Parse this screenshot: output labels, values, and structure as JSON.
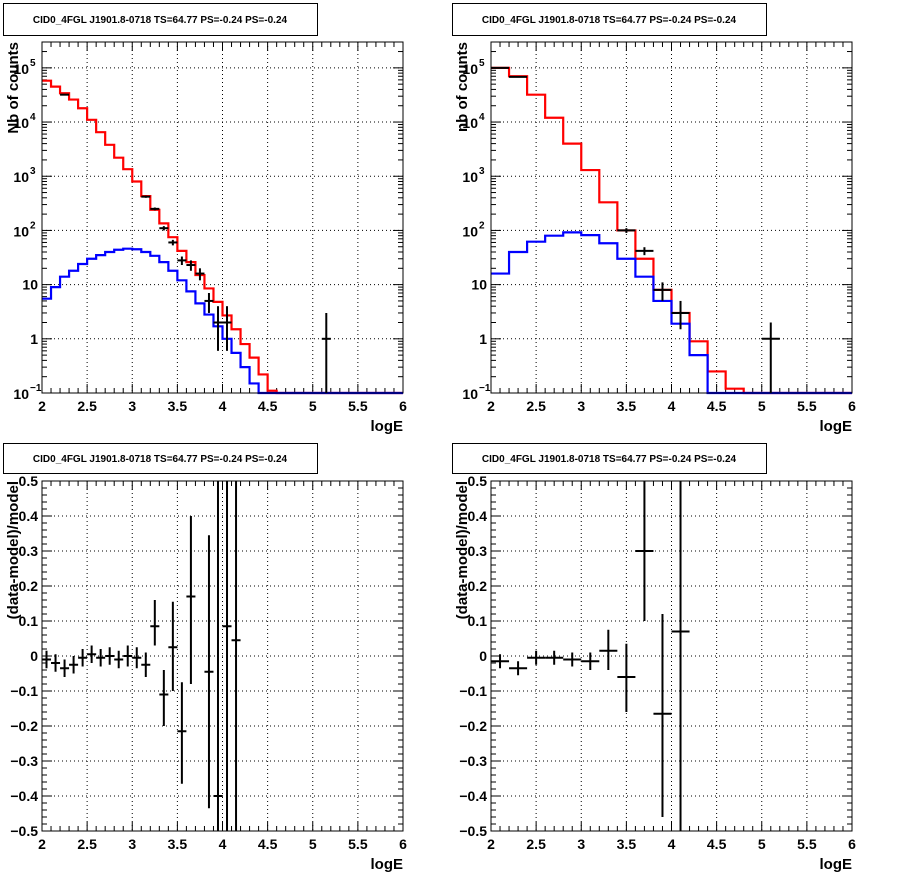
{
  "colors": {
    "data": "#000000",
    "total_model": "#ff0000",
    "source_model": "#0000ff",
    "grid": "#000000"
  },
  "chart_data": [
    {
      "type": "step",
      "title": "CID0_4FGL J1901.8-0718 TS=64.77 PS=-0.24 PS=-0.24",
      "xlabel": "logE",
      "ylabel": "Nb of counts",
      "log_y": true,
      "grid": true,
      "xlim": [
        2,
        6
      ],
      "ylim": [
        0.1,
        300000
      ],
      "x_ticks": [
        "2",
        "2.5",
        "3",
        "3.5",
        "4",
        "4.5",
        "5",
        "5.5",
        "6"
      ],
      "y_ticks": [
        {
          "v": 0.1,
          "label": "10",
          "sup": "−1"
        },
        {
          "v": 1,
          "label": "1",
          "sup": ""
        },
        {
          "v": 10,
          "label": "10",
          "sup": ""
        },
        {
          "v": 100,
          "label": "10",
          "sup": "2"
        },
        {
          "v": 1000,
          "label": "10",
          "sup": "3"
        },
        {
          "v": 10000,
          "label": "10",
          "sup": "4"
        },
        {
          "v": 100000,
          "label": "10",
          "sup": "5"
        }
      ],
      "bin_edges": [
        2,
        2.1,
        2.2,
        2.3,
        2.4,
        2.5,
        2.6,
        2.7,
        2.8,
        2.9,
        3,
        3.1,
        3.2,
        3.3,
        3.4,
        3.5,
        3.6,
        3.7,
        3.8,
        3.9,
        4,
        4.1,
        4.2,
        4.3,
        4.4,
        4.5,
        4.6,
        4.7,
        4.8,
        4.9,
        5,
        5.1,
        5.2,
        5.3,
        5.4,
        5.5,
        5.6,
        5.7,
        5.8,
        5.9,
        6
      ],
      "series": [
        {
          "role": "total_model",
          "values": [
            58000,
            45000,
            34000,
            26000,
            18000,
            11000,
            6500,
            3800,
            2200,
            1350,
            800,
            430,
            240,
            135,
            75,
            42,
            26,
            15,
            8.5,
            4.8,
            2.7,
            1.5,
            0.8,
            0.45,
            0.22,
            0.11,
            0.1,
            0.1,
            0.1,
            0.1,
            0.1,
            0.1,
            0.1,
            0.1,
            0.1,
            0.1,
            0.1,
            0.1,
            0.1,
            0.1
          ]
        },
        {
          "role": "source_model",
          "values": [
            5.5,
            9,
            14,
            18,
            24,
            30,
            35,
            40,
            44,
            46,
            45,
            40,
            34,
            26,
            18,
            12,
            7.5,
            4.5,
            2.8,
            1.7,
            1,
            0.55,
            0.3,
            0.15,
            0.1,
            0.1,
            0.1,
            0.1,
            0.1,
            0.1,
            0.1,
            0.1,
            0.1,
            0.1,
            0.1,
            0.1,
            0.1,
            0.1,
            0.1,
            0.1
          ]
        }
      ],
      "points": [
        {
          "x": 2.25,
          "y": 32000,
          "lo": 31000,
          "hi": 33000
        },
        {
          "x": 3.15,
          "y": 420,
          "lo": 400,
          "hi": 440
        },
        {
          "x": 3.25,
          "y": 250,
          "lo": 235,
          "hi": 265
        },
        {
          "x": 3.35,
          "y": 110,
          "lo": 100,
          "hi": 120
        },
        {
          "x": 3.45,
          "y": 60,
          "lo": 53,
          "hi": 67
        },
        {
          "x": 3.55,
          "y": 28,
          "lo": 23,
          "hi": 33
        },
        {
          "x": 3.65,
          "y": 23,
          "lo": 18,
          "hi": 28
        },
        {
          "x": 3.75,
          "y": 16,
          "lo": 12,
          "hi": 20
        },
        {
          "x": 3.85,
          "y": 5,
          "lo": 3,
          "hi": 7
        },
        {
          "x": 3.95,
          "y": 2,
          "lo": 0.6,
          "hi": 4
        },
        {
          "x": 4.05,
          "y": 2,
          "lo": 0.6,
          "hi": 4
        },
        {
          "x": 5.15,
          "y": 1,
          "lo": 0.1,
          "hi": 3
        }
      ]
    },
    {
      "type": "step",
      "title": "CID0_4FGL J1901.8-0718 TS=64.77 PS=-0.24 PS=-0.24",
      "xlabel": "logE",
      "ylabel": "nb of counts",
      "log_y": true,
      "grid": true,
      "xlim": [
        2,
        6
      ],
      "ylim": [
        0.1,
        300000
      ],
      "x_ticks": [
        "2",
        "2.5",
        "3",
        "3.5",
        "4",
        "4.5",
        "5",
        "5.5",
        "6"
      ],
      "y_ticks": [
        {
          "v": 0.1,
          "label": "10",
          "sup": "−1"
        },
        {
          "v": 1,
          "label": "1",
          "sup": ""
        },
        {
          "v": 10,
          "label": "10",
          "sup": ""
        },
        {
          "v": 100,
          "label": "10",
          "sup": "2"
        },
        {
          "v": 1000,
          "label": "10",
          "sup": "3"
        },
        {
          "v": 10000,
          "label": "10",
          "sup": "4"
        },
        {
          "v": 100000,
          "label": "10",
          "sup": "5"
        }
      ],
      "bin_edges": [
        2,
        2.2,
        2.4,
        2.6,
        2.8,
        3,
        3.2,
        3.4,
        3.6,
        3.8,
        4,
        4.2,
        4.4,
        4.6,
        4.8,
        5,
        5.2,
        5.4,
        5.6,
        5.8,
        6
      ],
      "series": [
        {
          "role": "total_model",
          "values": [
            100000,
            70000,
            32000,
            12000,
            4000,
            1300,
            330,
            100,
            30,
            8,
            3,
            0.9,
            0.25,
            0.12,
            0.1,
            0.1,
            0.1,
            0.1,
            0.1,
            0.1
          ]
        },
        {
          "role": "source_model",
          "values": [
            16,
            40,
            62,
            80,
            92,
            82,
            58,
            30,
            14,
            5,
            1.9,
            0.5,
            0.1,
            0.1,
            0.1,
            0.1,
            0.1,
            0.1,
            0.1,
            0.1
          ]
        }
      ],
      "points": [
        {
          "x": 2.1,
          "y": 100000,
          "lo": 99000,
          "hi": 101000
        },
        {
          "x": 2.3,
          "y": 68000,
          "lo": 67000,
          "hi": 69000
        },
        {
          "x": 3.5,
          "y": 100,
          "lo": 90,
          "hi": 110
        },
        {
          "x": 3.7,
          "y": 42,
          "lo": 35,
          "hi": 49
        },
        {
          "x": 3.9,
          "y": 8,
          "lo": 5,
          "hi": 11
        },
        {
          "x": 4.1,
          "y": 3,
          "lo": 1.5,
          "hi": 5
        },
        {
          "x": 5.1,
          "y": 1,
          "lo": 0.1,
          "hi": 2
        }
      ]
    },
    {
      "type": "scatter",
      "title": "CID0_4FGL J1901.8-0718 TS=64.77 PS=-0.24 PS=-0.24",
      "xlabel": "logE",
      "ylabel": "(data-model)/model",
      "log_y": false,
      "grid": true,
      "xlim": [
        2,
        6
      ],
      "ylim": [
        -0.5,
        0.5
      ],
      "x_ticks": [
        "2",
        "2.5",
        "3",
        "3.5",
        "4",
        "4.5",
        "5",
        "5.5",
        "6"
      ],
      "y_ticks": [
        {
          "v": -0.5,
          "label": "−0.5",
          "sup": ""
        },
        {
          "v": -0.4,
          "label": "−0.4",
          "sup": ""
        },
        {
          "v": -0.3,
          "label": "−0.3",
          "sup": ""
        },
        {
          "v": -0.2,
          "label": "−0.2",
          "sup": ""
        },
        {
          "v": -0.1,
          "label": "−0.1",
          "sup": ""
        },
        {
          "v": 0,
          "label": "0",
          "sup": ""
        },
        {
          "v": 0.1,
          "label": "0.1",
          "sup": ""
        },
        {
          "v": 0.2,
          "label": "0.2",
          "sup": ""
        },
        {
          "v": 0.3,
          "label": "0.3",
          "sup": ""
        },
        {
          "v": 0.4,
          "label": "0.4",
          "sup": ""
        },
        {
          "v": 0.5,
          "label": "0.5",
          "sup": ""
        }
      ],
      "bin_width": 0.1,
      "points": [
        {
          "x": 2.05,
          "y": -0.01,
          "lo": -0.035,
          "hi": 0.015
        },
        {
          "x": 2.15,
          "y": -0.02,
          "lo": -0.045,
          "hi": 0.005
        },
        {
          "x": 2.25,
          "y": -0.035,
          "lo": -0.06,
          "hi": -0.01
        },
        {
          "x": 2.35,
          "y": -0.025,
          "lo": -0.05,
          "hi": 0
        },
        {
          "x": 2.45,
          "y": -0.005,
          "lo": -0.03,
          "hi": 0.02
        },
        {
          "x": 2.55,
          "y": 0.005,
          "lo": -0.02,
          "hi": 0.03
        },
        {
          "x": 2.65,
          "y": -0.005,
          "lo": -0.03,
          "hi": 0.02
        },
        {
          "x": 2.75,
          "y": 0,
          "lo": -0.025,
          "hi": 0.025
        },
        {
          "x": 2.85,
          "y": -0.01,
          "lo": -0.035,
          "hi": 0.015
        },
        {
          "x": 2.95,
          "y": 0,
          "lo": -0.03,
          "hi": 0.03
        },
        {
          "x": 3.05,
          "y": -0.005,
          "lo": -0.035,
          "hi": 0.025
        },
        {
          "x": 3.15,
          "y": -0.025,
          "lo": -0.06,
          "hi": 0.01
        },
        {
          "x": 3.25,
          "y": 0.085,
          "lo": 0.03,
          "hi": 0.16
        },
        {
          "x": 3.35,
          "y": -0.11,
          "lo": -0.2,
          "hi": -0.04
        },
        {
          "x": 3.45,
          "y": 0.025,
          "lo": -0.1,
          "hi": 0.155
        },
        {
          "x": 3.55,
          "y": -0.215,
          "lo": -0.365,
          "hi": -0.075
        },
        {
          "x": 3.65,
          "y": 0.17,
          "lo": -0.08,
          "hi": 0.4
        },
        {
          "x": 3.85,
          "y": -0.045,
          "lo": -0.435,
          "hi": 0.345
        },
        {
          "x": 3.95,
          "y": -0.4,
          "lo": -0.5,
          "hi": 0.5
        },
        {
          "x": 4.05,
          "y": 0.085,
          "lo": -0.5,
          "hi": 0.5
        },
        {
          "x": 4.15,
          "y": 0.045,
          "lo": -0.5,
          "hi": 0.5
        }
      ]
    },
    {
      "type": "scatter",
      "title": "CID0_4FGL J1901.8-0718 TS=64.77 PS=-0.24 PS=-0.24",
      "xlabel": "logE",
      "ylabel": "(data-model)/model",
      "log_y": false,
      "grid": true,
      "xlim": [
        2,
        6
      ],
      "ylim": [
        -0.5,
        0.5
      ],
      "x_ticks": [
        "2",
        "2.5",
        "3",
        "3.5",
        "4",
        "4.5",
        "5",
        "5.5",
        "6"
      ],
      "y_ticks": [
        {
          "v": -0.5,
          "label": "−0.5",
          "sup": ""
        },
        {
          "v": -0.4,
          "label": "−0.4",
          "sup": ""
        },
        {
          "v": -0.3,
          "label": "−0.3",
          "sup": ""
        },
        {
          "v": -0.2,
          "label": "−0.2",
          "sup": ""
        },
        {
          "v": -0.1,
          "label": "−0.1",
          "sup": ""
        },
        {
          "v": 0,
          "label": "0",
          "sup": ""
        },
        {
          "v": 0.1,
          "label": "0.1",
          "sup": ""
        },
        {
          "v": 0.2,
          "label": "0.2",
          "sup": ""
        },
        {
          "v": 0.3,
          "label": "0.3",
          "sup": ""
        },
        {
          "v": 0.4,
          "label": "0.4",
          "sup": ""
        },
        {
          "v": 0.5,
          "label": "0.5",
          "sup": ""
        }
      ],
      "bin_width": 0.2,
      "points": [
        {
          "x": 2.1,
          "y": -0.015,
          "lo": -0.035,
          "hi": 0.005
        },
        {
          "x": 2.3,
          "y": -0.035,
          "lo": -0.055,
          "hi": -0.015
        },
        {
          "x": 2.5,
          "y": -0.005,
          "lo": -0.025,
          "hi": 0.015
        },
        {
          "x": 2.7,
          "y": -0.005,
          "lo": -0.025,
          "hi": 0.015
        },
        {
          "x": 2.9,
          "y": -0.01,
          "lo": -0.03,
          "hi": 0.01
        },
        {
          "x": 3.1,
          "y": -0.015,
          "lo": -0.04,
          "hi": 0.01
        },
        {
          "x": 3.3,
          "y": 0.015,
          "lo": -0.04,
          "hi": 0.075
        },
        {
          "x": 3.5,
          "y": -0.06,
          "lo": -0.16,
          "hi": 0.035
        },
        {
          "x": 3.7,
          "y": 0.3,
          "lo": 0.1,
          "hi": 0.5
        },
        {
          "x": 3.9,
          "y": -0.165,
          "lo": -0.46,
          "hi": 0.12
        },
        {
          "x": 4.1,
          "y": 0.07,
          "lo": -0.5,
          "hi": 0.5
        }
      ]
    }
  ]
}
